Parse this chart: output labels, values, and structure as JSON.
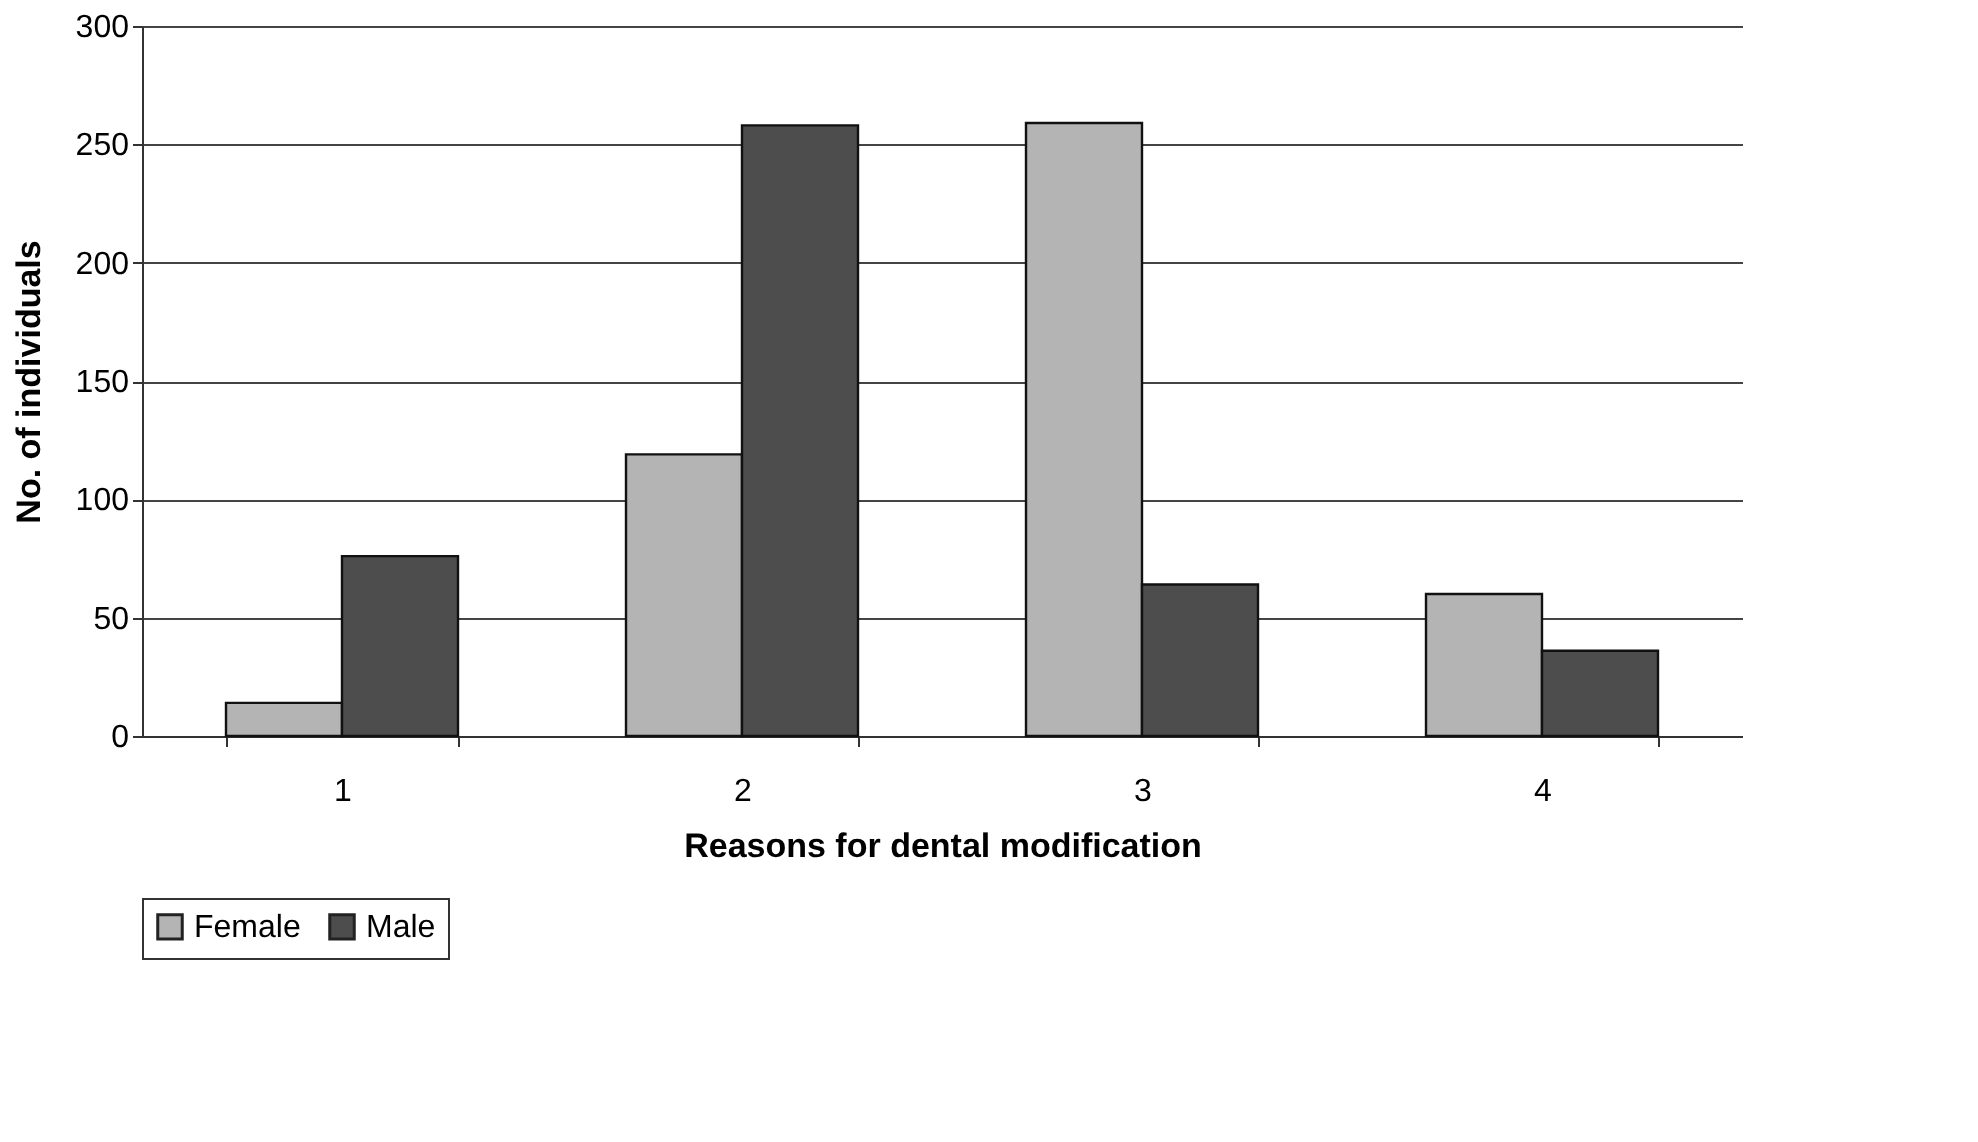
{
  "chart_data": {
    "type": "bar",
    "xlabel": "Reasons for dental modification",
    "ylabel": "No. of individuals",
    "categories": [
      "1",
      "2",
      "3",
      "4"
    ],
    "series": [
      {
        "name": "Female",
        "color": "#b4b4b4",
        "values": [
          14,
          119,
          259,
          60
        ]
      },
      {
        "name": "Male",
        "color": "#4d4d4d",
        "values": [
          76,
          258,
          64,
          36
        ]
      }
    ],
    "ylim": [
      0,
      300
    ],
    "yticks": [
      0,
      50,
      100,
      150,
      200,
      250,
      300
    ],
    "grid": "y",
    "legend": "bottom"
  }
}
